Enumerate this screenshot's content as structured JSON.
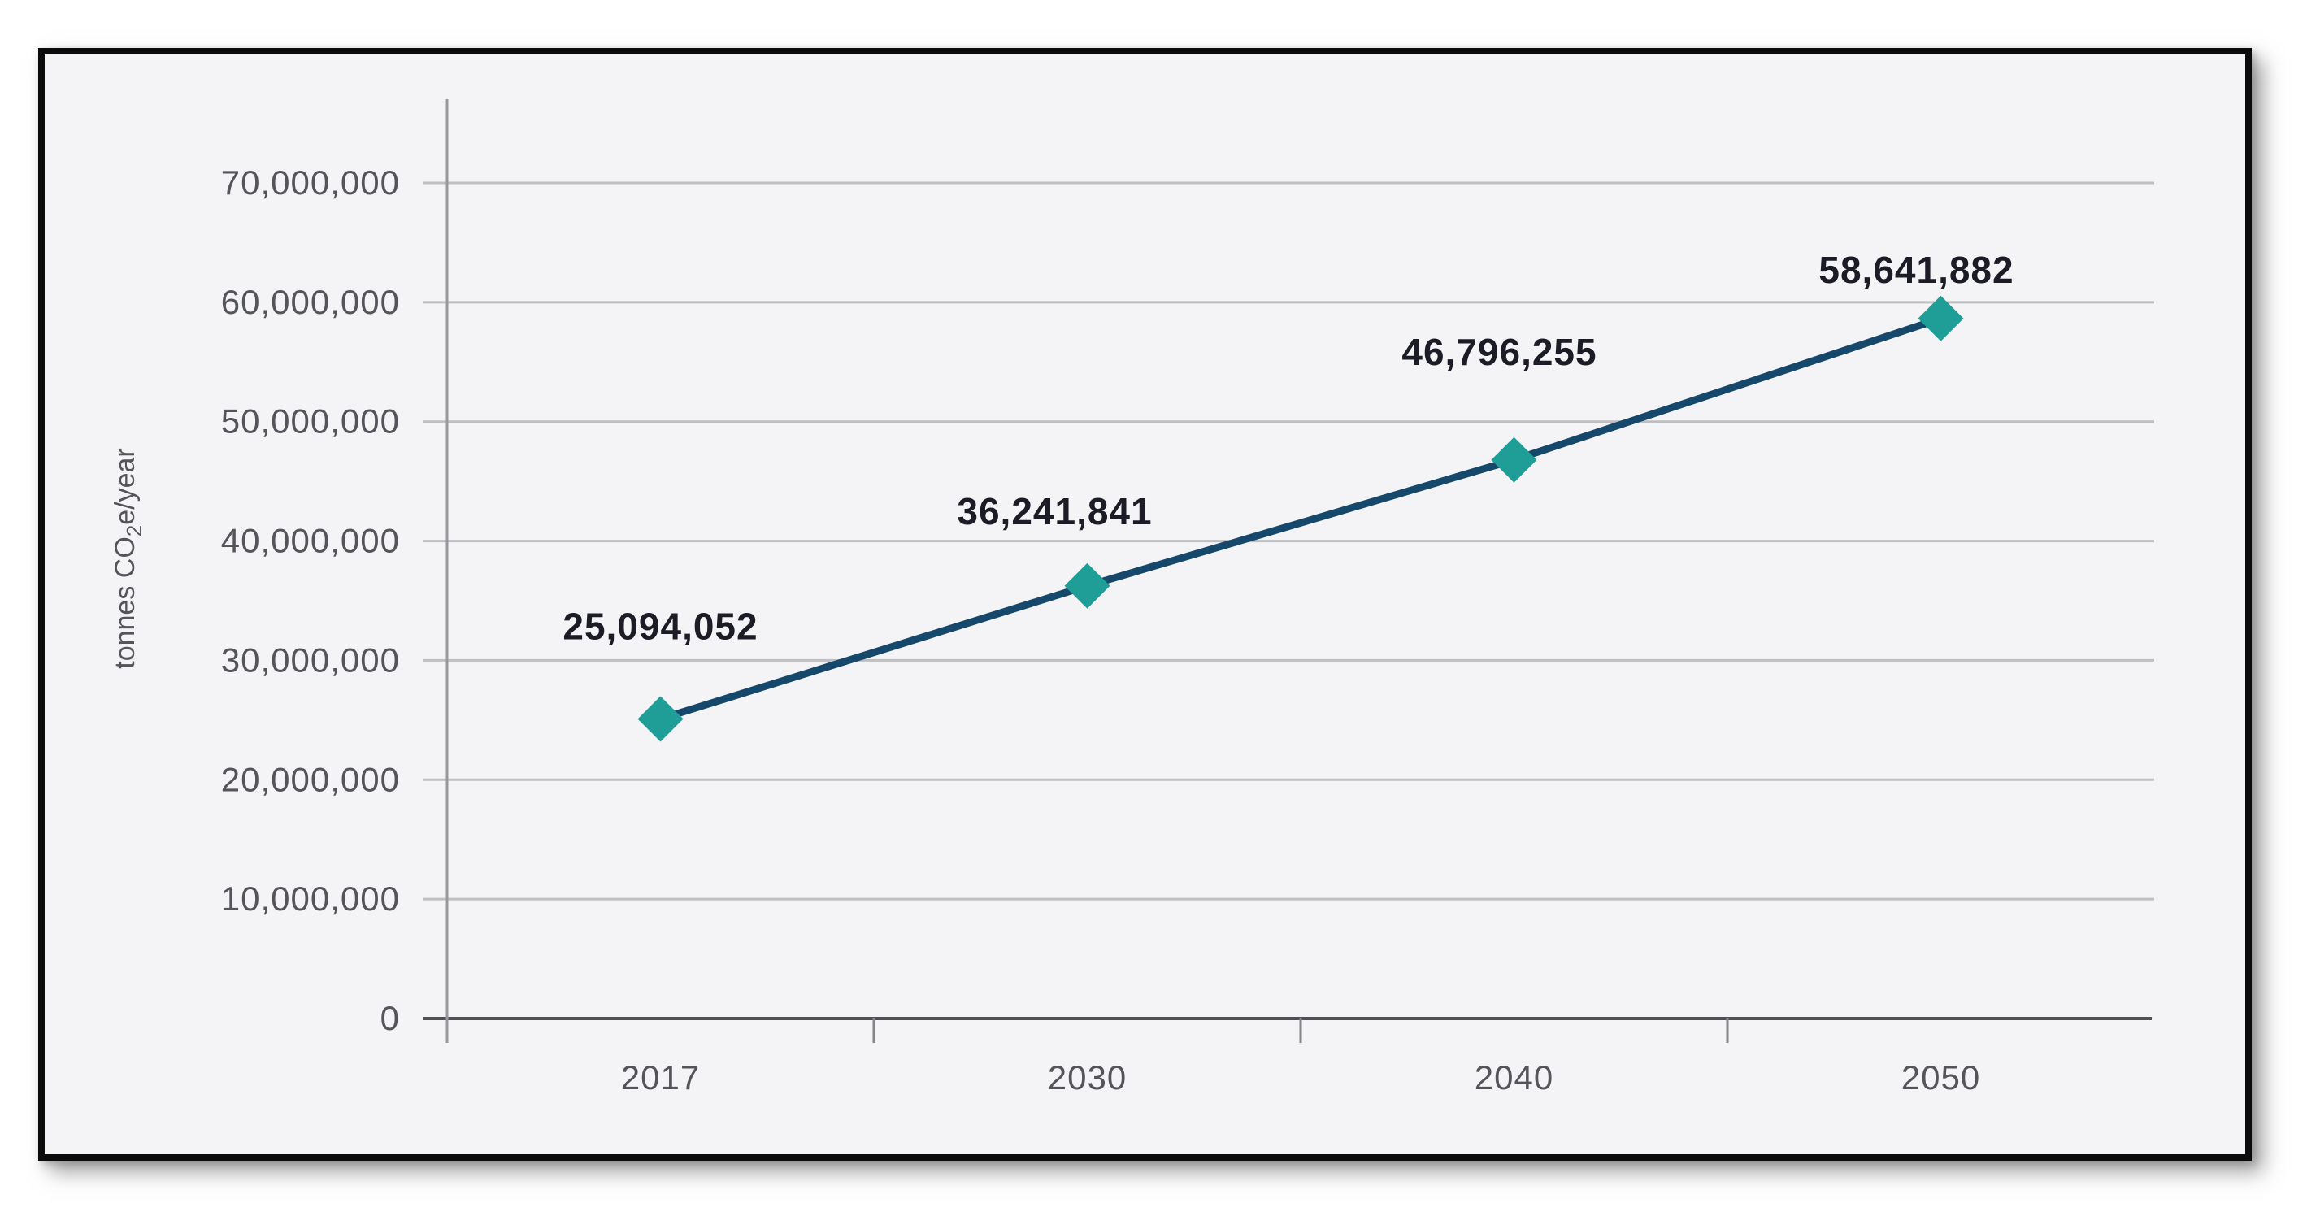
{
  "chart_data": {
    "type": "line",
    "title": "",
    "xlabel": "",
    "ylabel": "tonnes CO₂e/year",
    "ylabel_parts": [
      "tonnes CO",
      "2",
      "e/year"
    ],
    "categories": [
      "2017",
      "2030",
      "2040",
      "2050"
    ],
    "values": [
      25094052,
      36241841,
      46796255,
      58641882
    ],
    "data_labels": [
      "25,094,052",
      "36,241,841",
      "46,796,255",
      "58,641,882"
    ],
    "ylim": [
      0,
      70000000
    ],
    "ytick_step": 10000000,
    "yticks": [
      {
        "value": 0,
        "label": "0"
      },
      {
        "value": 10000000,
        "label": "10,000,000"
      },
      {
        "value": 20000000,
        "label": "20,000,000"
      },
      {
        "value": 30000000,
        "label": "30,000,000"
      },
      {
        "value": 40000000,
        "label": "40,000,000"
      },
      {
        "value": 50000000,
        "label": "50,000,000"
      },
      {
        "value": 60000000,
        "label": "60,000,000"
      },
      {
        "value": 70000000,
        "label": "70,000,000"
      }
    ],
    "grid": "horizontal",
    "legend": "none",
    "marker_shape": "diamond",
    "colors": {
      "line": "#16486B",
      "marker": "#1F9E97",
      "grid": "#BFBFC3",
      "x_axis": "#4F4F54",
      "y_axis": "#97979C",
      "tick": "#85858A",
      "tick_label": "#54555B",
      "data_label": "#1C1C26",
      "plot_background": "#F4F4F6",
      "page_background": "#FFFFFF",
      "frame_border": "#0B0B0B"
    }
  }
}
